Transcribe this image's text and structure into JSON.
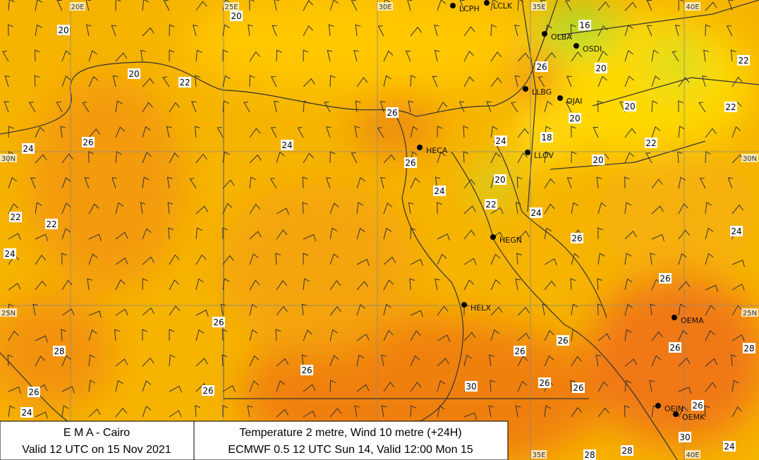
{
  "grid_labels": {
    "longitudes": [
      "20E",
      "25E",
      "30E",
      "35E",
      "40E"
    ],
    "latitudes": [
      "30N",
      "25N"
    ]
  },
  "stations": [
    "LCPH",
    "LCLK",
    "OLBA",
    "OSDI",
    "LLBG",
    "OJAI",
    "HECA",
    "LLOV",
    "HEGN",
    "HELX",
    "OEMA",
    "OEJN",
    "OEMK"
  ],
  "temperature_labels": [
    "20",
    "20",
    "20",
    "22",
    "16",
    "26",
    "20",
    "22",
    "26",
    "20",
    "20",
    "22",
    "24",
    "26",
    "24",
    "24",
    "18",
    "22",
    "26",
    "20",
    "24",
    "20",
    "22",
    "24",
    "22",
    "22",
    "24",
    "24",
    "26",
    "26",
    "26",
    "28",
    "28",
    "26",
    "26",
    "26",
    "26",
    "26",
    "26",
    "30",
    "26",
    "26",
    "24",
    "26",
    "30",
    "28",
    "28",
    "24"
  ],
  "footer": {
    "left": [
      "E M A  -  Cairo",
      "Valid 12 UTC on 15 Nov 2021"
    ],
    "right": [
      "Temperature  2 metre, Wind  10 metre (+24H)",
      "ECMWF 0.5 12 UTC Sun 14, Valid 12:00 Mon 15"
    ]
  }
}
